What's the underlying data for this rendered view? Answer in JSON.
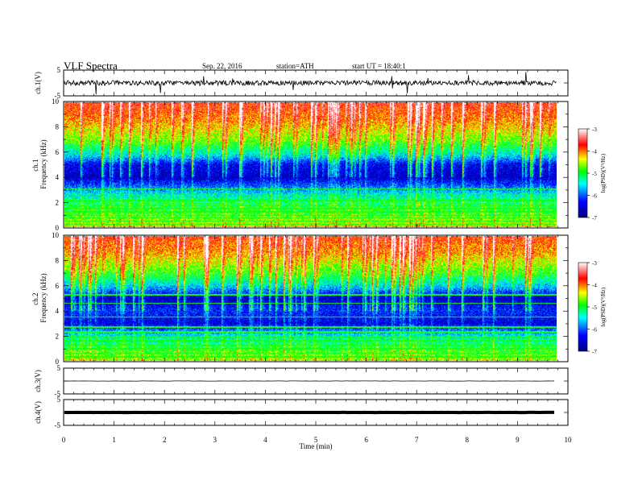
{
  "header": {
    "title": "VLF  Spectra",
    "date": "Sep. 22, 2016",
    "station": "station=ATH",
    "start": "start  UT =   18:40:1"
  },
  "chart_data": [
    {
      "type": "line",
      "panel": "ch1-waveform",
      "xlabel": "",
      "ylabel": "ch.1(V)",
      "x_range": [
        0,
        10
      ],
      "ylim": [
        -5,
        5
      ],
      "y_ticks": [
        "5",
        "-5"
      ],
      "baseline": 0,
      "trace_color": "#000000"
    },
    {
      "type": "heatmap",
      "panel": "ch1-spectrogram",
      "ylabel": "ch.1\nFrequency  (kHz)",
      "x_range": [
        0,
        10
      ],
      "data_x_max": 9.8,
      "ylim": [
        0,
        10
      ],
      "y_ticks": [
        "0",
        "2",
        "4",
        "6",
        "8",
        "10"
      ],
      "colorbar": {
        "label": "log(PSD)(V²/Hz)",
        "range": [
          -7,
          -3
        ],
        "ticks": [
          "-3",
          "-4",
          "-5",
          "-6",
          "-7"
        ],
        "colors": [
          "#000080",
          "#0000ff",
          "#00ffff",
          "#00ff00",
          "#ffff00",
          "#ff0000",
          "#ffffff"
        ]
      },
      "profile_khz_log": [
        [
          0,
          -4.4
        ],
        [
          1,
          -4.9
        ],
        [
          2,
          -5.1
        ],
        [
          3,
          -5.8
        ],
        [
          4,
          -6.6
        ],
        [
          5,
          -6.4
        ],
        [
          5.8,
          -5.5
        ],
        [
          7,
          -4.7
        ],
        [
          8.5,
          -4.1
        ],
        [
          10,
          -3.7
        ]
      ]
    },
    {
      "type": "heatmap",
      "panel": "ch2-spectrogram",
      "ylabel": "ch.2\nFrequency  (kHz)",
      "x_range": [
        0,
        10
      ],
      "data_x_max": 9.8,
      "ylim": [
        0,
        10
      ],
      "y_ticks": [
        "0",
        "2",
        "4",
        "6",
        "8",
        "10"
      ],
      "colorbar": {
        "label": "log(PSD)(V²/Hz)",
        "range": [
          -7,
          -3
        ],
        "ticks": [
          "-3",
          "-4",
          "-5",
          "-6",
          "-7"
        ],
        "colors": [
          "#000080",
          "#0000ff",
          "#00ffff",
          "#00ff00",
          "#ffff00",
          "#ff0000",
          "#ffffff"
        ]
      },
      "profile_khz_log": [
        [
          0,
          -4.6
        ],
        [
          1,
          -5.0
        ],
        [
          2,
          -5.5
        ],
        [
          3,
          -6.5
        ],
        [
          4,
          -6.2
        ],
        [
          5,
          -6.6
        ],
        [
          6,
          -5.6
        ],
        [
          7,
          -4.9
        ],
        [
          8.5,
          -4.2
        ],
        [
          10,
          -3.8
        ]
      ]
    },
    {
      "type": "line",
      "panel": "ch3-waveform",
      "ylabel": "ch.3(V)",
      "x_range": [
        0,
        10
      ],
      "ylim": [
        -5,
        5
      ],
      "y_ticks": [
        "5",
        "-5"
      ],
      "baseline": 0,
      "trace_color": "#000000"
    },
    {
      "type": "line",
      "panel": "ch4-waveform",
      "ylabel": "ch.4(V)",
      "x_range": [
        0,
        10
      ],
      "ylim": [
        -5,
        5
      ],
      "y_ticks": [
        "5",
        "-5"
      ],
      "baseline": 0,
      "trace_color": "#000000"
    }
  ],
  "x_axis": {
    "label": "Time  (min)",
    "ticks": [
      "0",
      "1",
      "2",
      "3",
      "4",
      "5",
      "6",
      "7",
      "8",
      "9",
      "10"
    ]
  }
}
